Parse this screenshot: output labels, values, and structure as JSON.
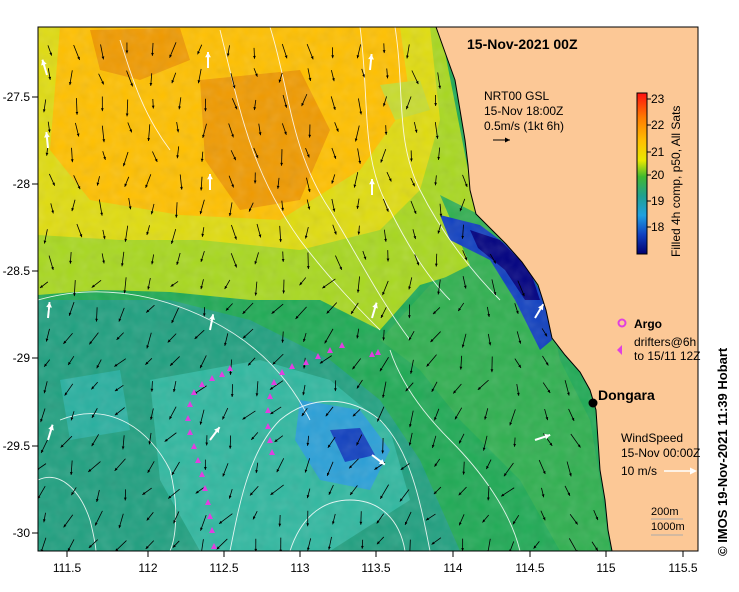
{
  "title": "15-Nov-2021 00Z",
  "current_legend": {
    "line1": "NRT00 GSL",
    "line2": "15-Nov 18:00Z",
    "line3": "0.5m/s (1kt 6h)"
  },
  "colorbar": {
    "ticks": [
      "23",
      "22",
      "21",
      "20",
      "19",
      "18"
    ],
    "label": "Filled 4h comp, p50, All Sats",
    "colors": [
      "#ff1010",
      "#ff7a00",
      "#ffb000",
      "#ffe000",
      "#c8e400",
      "#50c020",
      "#20a050",
      "#20a0a0",
      "#2090e0",
      "#1040c0",
      "#000080"
    ]
  },
  "argo": {
    "label": "Argo"
  },
  "drifters": {
    "line1": "drifters@6h",
    "line2": "to 15/11 12Z"
  },
  "city": {
    "name": "Dongara"
  },
  "wind_legend": {
    "line1": "WindSpeed",
    "line2": "15-Nov 00:00Z",
    "line3": "10 m/s"
  },
  "contours_legend": {
    "line1": "200m",
    "line2": "1000m"
  },
  "credit": "© IMOS 19-Nov-2021 11:39 Hobart",
  "axes": {
    "lat_ticks": [
      "-27.5",
      "-28",
      "-28.5",
      "-29",
      "-29.5",
      "-30"
    ],
    "lon_ticks": [
      "111.5",
      "112",
      "112.5",
      "113",
      "113.5",
      "114",
      "114.5",
      "115",
      "115.5"
    ]
  },
  "colors": {
    "land": "#fcc896",
    "drifter": "#e040e0",
    "argo": "#e040e0"
  }
}
